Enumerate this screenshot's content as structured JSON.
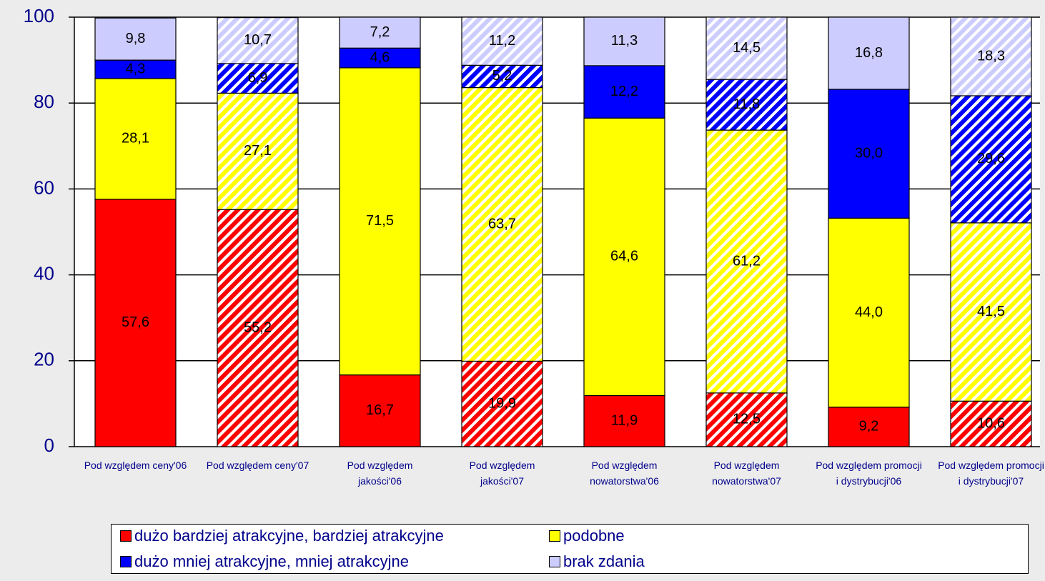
{
  "chart_data": {
    "type": "stacked_bar",
    "categories": [
      "Pod względem ceny'06",
      "Pod względem ceny'07",
      "Pod względem jakości'06",
      "Pod względem jakości'07",
      "Pod względem nowatorstwa'06",
      "Pod względem nowatorstwa'07",
      "Pod względem promocji i dystrybucji'06",
      "Pod względem promocji i dystrybucji'07"
    ],
    "hatched": [
      false,
      true,
      false,
      true,
      false,
      true,
      false,
      true
    ],
    "series": [
      {
        "name": "dużo bardziej atrakcyjne, bardziej atrakcyjne",
        "color": "#ff0000",
        "values": [
          57.6,
          55.2,
          16.7,
          19.9,
          11.9,
          12.5,
          9.2,
          10.6
        ],
        "value_labels": [
          "57,6",
          "55,2",
          "16,7",
          "19,9",
          "11,9",
          "12,5",
          "9,2",
          "10,6"
        ]
      },
      {
        "name": "podobne",
        "color": "#ffff00",
        "values": [
          28.1,
          27.1,
          71.5,
          63.7,
          64.6,
          61.2,
          44.0,
          41.5
        ],
        "value_labels": [
          "28,1",
          "27,1",
          "71,5",
          "63,7",
          "64,6",
          "61,2",
          "44,0",
          "41,5"
        ]
      },
      {
        "name": "dużo mniej atrakcyjne, mniej atrakcyjne",
        "color": "#0000ff",
        "values": [
          4.3,
          6.9,
          4.6,
          5.2,
          12.2,
          11.8,
          30.0,
          29.6
        ],
        "value_labels": [
          "4,3",
          "6,9",
          "4,6",
          "5,2",
          "12,2",
          "11,8",
          "30,0",
          "29,6"
        ]
      },
      {
        "name": "brak zdania",
        "color": "#ccccff",
        "values": [
          9.8,
          10.7,
          7.2,
          11.2,
          11.3,
          14.5,
          16.8,
          18.3
        ],
        "value_labels": [
          "9,8",
          "10,7",
          "7,2",
          "11,2",
          "11,3",
          "14,5",
          "16,8",
          "18,3"
        ]
      }
    ],
    "ylim": [
      0,
      100
    ],
    "yticks": [
      0,
      20,
      40,
      60,
      80,
      100
    ],
    "grid": true
  }
}
